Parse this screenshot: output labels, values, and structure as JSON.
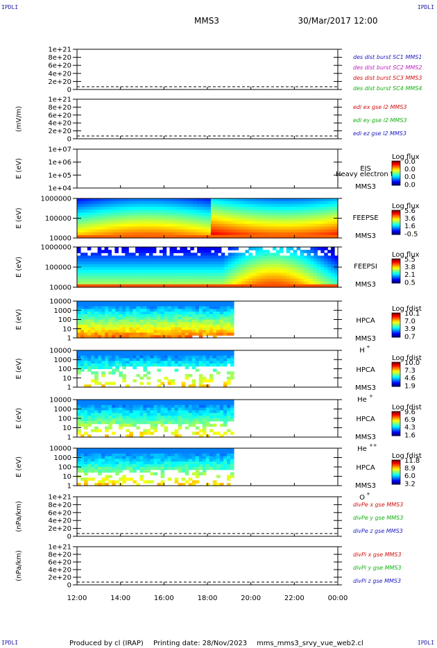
{
  "header": {
    "spacecraft": "MMS3",
    "datetime": "30/Mar/2017 12:00",
    "corner_label": "IPDLI"
  },
  "footer": {
    "produced_by": "Produced by cl (IRAP)",
    "printing_date": "Printing date: 28/Nov/2023",
    "file": "mms_mms3_srvy_vue_web2.cl"
  },
  "chart_data": {
    "type": "multi-panel",
    "x_axis": {
      "range": [
        "12:00",
        "00:00"
      ],
      "ticks": [
        "12:00",
        "14:00",
        "16:00",
        "18:00",
        "20:00",
        "22:00",
        "00:00"
      ]
    },
    "panels": [
      {
        "id": "p1",
        "type": "line",
        "ylabel": "",
        "yticks": [
          "1e+21",
          "8e+20",
          "6e+20",
          "4e+20",
          "2e+20",
          "0"
        ],
        "series": [
          {
            "name": "des dist burst SC1 MMS1",
            "color": "#2020c0"
          },
          {
            "name": "des dist burst SC2 MMS2",
            "color": "#c020c0"
          },
          {
            "name": "des dist burst SC3 MMS3",
            "color": "#d01010"
          },
          {
            "name": "des dist burst SC4 MMS4",
            "color": "#10b010"
          }
        ]
      },
      {
        "id": "p2",
        "type": "line",
        "ylabel": "(mV/m)",
        "yticks": [
          "1e+21",
          "8e+20",
          "6e+20",
          "4e+20",
          "2e+20",
          "0"
        ],
        "series": [
          {
            "name": "edi ex gse l2 MMS3",
            "color": "#d01010"
          },
          {
            "name": "edi ey gse l2 MMS3",
            "color": "#10b010"
          },
          {
            "name": "edi ez gse l2 MMS3",
            "color": "#2020c0"
          }
        ]
      },
      {
        "id": "p3",
        "type": "heatmap",
        "ylabel": "E (eV)",
        "yticks": [
          "1e+07",
          "1e+06",
          "1e+05",
          "1e+04"
        ],
        "instrument": [
          "EIS",
          "MMS3"
        ],
        "extra_label": "Heavy electron to",
        "colorbar": {
          "title": "Log flux",
          "ticks": [
            "0.0",
            "0.0",
            "0.0",
            "0.0"
          ]
        }
      },
      {
        "id": "p4",
        "type": "heatmap",
        "ylabel": "E (eV)",
        "yticks": [
          "1000000",
          "100000",
          "10000"
        ],
        "instrument": [
          "FEEPSE",
          "MMS3"
        ],
        "colorbar": {
          "title": "Log flux",
          "ticks": [
            "5.6",
            "3.6",
            "1.6",
            "-0.5"
          ]
        }
      },
      {
        "id": "p5",
        "type": "heatmap",
        "ylabel": "E (eV)",
        "yticks": [
          "1000000",
          "100000",
          "10000"
        ],
        "instrument": [
          "FEEPSI",
          "MMS3"
        ],
        "colorbar": {
          "title": "Log flux",
          "ticks": [
            "5.5",
            "3.8",
            "2.1",
            "0.5"
          ]
        }
      },
      {
        "id": "p6",
        "type": "heatmap",
        "ylabel": "E (eV)",
        "yticks": [
          "10000",
          "1000",
          "100",
          "10",
          "1"
        ],
        "instrument": [
          "HPCA",
          "MMS3"
        ],
        "species": "H",
        "species_sup": "+",
        "colorbar": {
          "title": "Log fdist",
          "ticks": [
            "10.1",
            "7.0",
            "3.9",
            "0.7"
          ]
        }
      },
      {
        "id": "p7",
        "type": "heatmap",
        "ylabel": "E (eV)",
        "yticks": [
          "10000",
          "1000",
          "100",
          "10",
          "1"
        ],
        "instrument": [
          "HPCA",
          "MMS3"
        ],
        "species": "He",
        "species_sup": "+",
        "colorbar": {
          "title": "Log fdist",
          "ticks": [
            "10.0",
            "7.3",
            "4.6",
            "1.9"
          ]
        }
      },
      {
        "id": "p8",
        "type": "heatmap",
        "ylabel": "E (eV)",
        "yticks": [
          "10000",
          "1000",
          "100",
          "10",
          "1"
        ],
        "instrument": [
          "HPCA",
          "MMS3"
        ],
        "species": "He",
        "species_sup": "++",
        "colorbar": {
          "title": "Log fdist",
          "ticks": [
            "9.6",
            "6.9",
            "4.3",
            "1.6"
          ]
        }
      },
      {
        "id": "p9",
        "type": "heatmap",
        "ylabel": "E (eV)",
        "yticks": [
          "10000",
          "1000",
          "100",
          "10",
          "1"
        ],
        "instrument": [
          "HPCA",
          "MMS3"
        ],
        "species": "O",
        "species_sup": "+",
        "colorbar": {
          "title": "Log fdist",
          "ticks": [
            "11.8",
            "8.9",
            "6.0",
            "3.2"
          ]
        }
      },
      {
        "id": "p10",
        "type": "line",
        "ylabel": "(nPa/km)",
        "yticks": [
          "1e+21",
          "8e+20",
          "6e+20",
          "4e+20",
          "2e+20",
          "0"
        ],
        "series": [
          {
            "name": "divPe x gse MMS3",
            "color": "#d01010"
          },
          {
            "name": "divPe y gse MMS3",
            "color": "#10b010"
          },
          {
            "name": "divPe z gse MMS3",
            "color": "#2020c0"
          }
        ]
      },
      {
        "id": "p11",
        "type": "line",
        "ylabel": "(nPa/km)",
        "yticks": [
          "1e+21",
          "8e+20",
          "6e+20",
          "4e+20",
          "2e+20",
          "0"
        ],
        "series": [
          {
            "name": "divPi x gse MMS3",
            "color": "#d01010"
          },
          {
            "name": "divPi y gse MMS3",
            "color": "#10b010"
          },
          {
            "name": "divPi z gse MMS3",
            "color": "#2020c0"
          }
        ]
      }
    ]
  }
}
